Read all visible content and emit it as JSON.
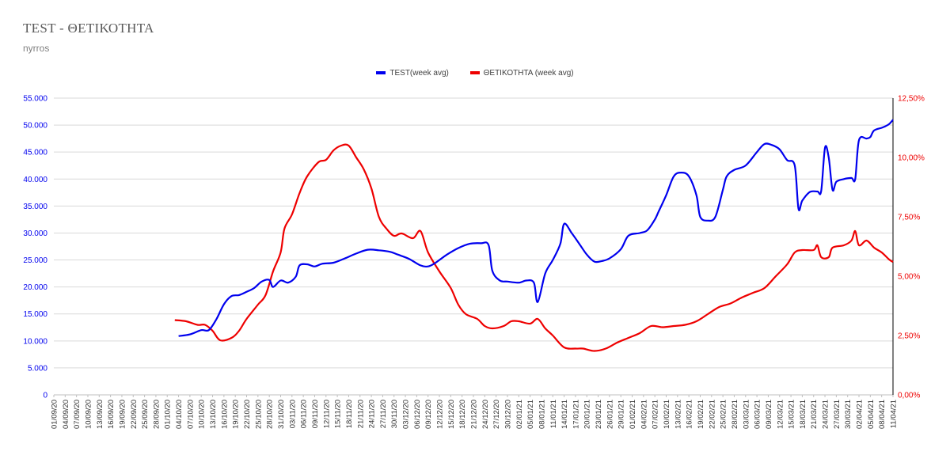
{
  "header": {
    "title": "TEST - ΘΕΤΙΚΟΤΗΤΑ",
    "subtitle": "nyrros"
  },
  "colors": {
    "test": "#0000ee",
    "positivity": "#ee0000",
    "grid": "#d9d9d9",
    "axis": "#000000"
  },
  "chart_data": {
    "type": "line",
    "title": "TEST - ΘΕΤΙΚΟΤΗΤΑ",
    "x_range": [
      "01/09/20",
      "11/04/21"
    ],
    "x_tick_labels": [
      "01/09/20",
      "04/09/20",
      "07/09/20",
      "10/09/20",
      "13/09/20",
      "16/09/20",
      "19/09/20",
      "22/09/20",
      "25/09/20",
      "28/09/20",
      "01/10/20",
      "04/10/20",
      "07/10/20",
      "10/10/20",
      "13/10/20",
      "16/10/20",
      "19/10/20",
      "22/10/20",
      "25/10/20",
      "28/10/20",
      "31/10/20",
      "03/11/20",
      "06/11/20",
      "09/11/20",
      "12/11/20",
      "15/11/20",
      "18/11/20",
      "21/11/20",
      "24/11/20",
      "27/11/20",
      "30/11/20",
      "03/12/20",
      "06/12/20",
      "09/12/20",
      "12/12/20",
      "15/12/20",
      "18/12/20",
      "21/12/20",
      "24/12/20",
      "27/12/20",
      "30/12/20",
      "02/01/21",
      "05/01/21",
      "08/01/21",
      "11/01/21",
      "14/01/21",
      "17/01/21",
      "20/01/21",
      "23/01/21",
      "26/01/21",
      "29/01/21",
      "01/02/21",
      "04/02/21",
      "07/02/21",
      "10/02/21",
      "13/02/21",
      "16/02/21",
      "19/02/21",
      "22/02/21",
      "25/02/21",
      "28/02/21",
      "03/03/21",
      "06/03/21",
      "09/03/21",
      "12/03/21",
      "15/03/21",
      "18/03/21",
      "21/03/21",
      "24/03/21",
      "27/03/21",
      "30/03/21",
      "02/04/21",
      "05/04/21",
      "08/04/21",
      "11/04/21"
    ],
    "y_left": {
      "min": 0,
      "max": 55000,
      "ticks": [
        "0",
        "5.000",
        "10.000",
        "15.000",
        "20.000",
        "25.000",
        "30.000",
        "35.000",
        "40.000",
        "45.000",
        "50.000",
        "55.000"
      ]
    },
    "y_right": {
      "min": 0,
      "max": 12.5,
      "ticks": [
        "0,00%",
        "2,50%",
        "5,00%",
        "7,50%",
        "10,00%",
        "12,50%"
      ]
    },
    "legend_position": "top-center",
    "grid": true,
    "series": [
      {
        "name": "TEST(week avg)",
        "axis": "left",
        "points": [
          [
            "04/10/20",
            10900
          ],
          [
            "07/10/20",
            11200
          ],
          [
            "10/10/20",
            12000
          ],
          [
            "12/10/20",
            12000
          ],
          [
            "14/10/20",
            14000
          ],
          [
            "16/10/20",
            16800
          ],
          [
            "18/10/20",
            18300
          ],
          [
            "20/10/20",
            18500
          ],
          [
            "22/10/20",
            19100
          ],
          [
            "24/10/20",
            19800
          ],
          [
            "26/10/20",
            21000
          ],
          [
            "28/10/20",
            21300
          ],
          [
            "29/10/20",
            20000
          ],
          [
            "31/10/20",
            21200
          ],
          [
            "02/11/20",
            20800
          ],
          [
            "04/11/20",
            21900
          ],
          [
            "05/11/20",
            24000
          ],
          [
            "07/11/20",
            24200
          ],
          [
            "09/11/20",
            23800
          ],
          [
            "11/11/20",
            24300
          ],
          [
            "14/11/20",
            24500
          ],
          [
            "17/11/20",
            25300
          ],
          [
            "20/11/20",
            26200
          ],
          [
            "23/11/20",
            26900
          ],
          [
            "26/11/20",
            26800
          ],
          [
            "29/11/20",
            26500
          ],
          [
            "01/12/20",
            26000
          ],
          [
            "04/12/20",
            25200
          ],
          [
            "07/12/20",
            24000
          ],
          [
            "09/12/20",
            23800
          ],
          [
            "11/12/20",
            24500
          ],
          [
            "14/12/20",
            26000
          ],
          [
            "17/12/20",
            27200
          ],
          [
            "20/12/20",
            28000
          ],
          [
            "23/12/20",
            28100
          ],
          [
            "25/12/20",
            27800
          ],
          [
            "26/12/20",
            23000
          ],
          [
            "28/12/20",
            21200
          ],
          [
            "30/12/20",
            21000
          ],
          [
            "02/01/21",
            20800
          ],
          [
            "04/01/21",
            21200
          ],
          [
            "06/01/21",
            20800
          ],
          [
            "07/01/21",
            17200
          ],
          [
            "09/01/21",
            22500
          ],
          [
            "11/01/21",
            25000
          ],
          [
            "13/01/21",
            28000
          ],
          [
            "14/01/21",
            31700
          ],
          [
            "16/01/21",
            30000
          ],
          [
            "18/01/21",
            28000
          ],
          [
            "20/01/21",
            26000
          ],
          [
            "22/01/21",
            24700
          ],
          [
            "24/01/21",
            24800
          ],
          [
            "26/01/21",
            25300
          ],
          [
            "29/01/21",
            27000
          ],
          [
            "31/01/21",
            29500
          ],
          [
            "03/02/21",
            30000
          ],
          [
            "05/02/21",
            30500
          ],
          [
            "07/02/21",
            32500
          ],
          [
            "08/02/21",
            34000
          ],
          [
            "10/02/21",
            37000
          ],
          [
            "12/02/21",
            40500
          ],
          [
            "14/02/21",
            41200
          ],
          [
            "16/02/21",
            40500
          ],
          [
            "18/02/21",
            37000
          ],
          [
            "19/02/21",
            33000
          ],
          [
            "21/02/21",
            32300
          ],
          [
            "23/02/21",
            33000
          ],
          [
            "25/02/21",
            38000
          ],
          [
            "26/02/21",
            40500
          ],
          [
            "28/02/21",
            41700
          ],
          [
            "03/03/21",
            42500
          ],
          [
            "06/03/21",
            45000
          ],
          [
            "08/03/21",
            46500
          ],
          [
            "10/03/21",
            46300
          ],
          [
            "12/03/21",
            45500
          ],
          [
            "14/03/21",
            43500
          ],
          [
            "16/03/21",
            42500
          ],
          [
            "17/03/21",
            34500
          ],
          [
            "18/03/21",
            36000
          ],
          [
            "20/03/21",
            37600
          ],
          [
            "22/03/21",
            37700
          ],
          [
            "23/03/21",
            37800
          ],
          [
            "24/03/21",
            45800
          ],
          [
            "25/03/21",
            44000
          ],
          [
            "26/03/21",
            38000
          ],
          [
            "27/03/21",
            39500
          ],
          [
            "29/03/21",
            40000
          ],
          [
            "31/03/21",
            40200
          ],
          [
            "01/04/21",
            40000
          ],
          [
            "02/04/21",
            47200
          ],
          [
            "04/04/21",
            47500
          ],
          [
            "05/04/21",
            47800
          ],
          [
            "06/04/21",
            49000
          ],
          [
            "08/04/21",
            49500
          ],
          [
            "09/04/21",
            49800
          ],
          [
            "10/04/21",
            50200
          ],
          [
            "11/04/21",
            51000
          ]
        ]
      },
      {
        "name": "ΘΕΤΙΚΟΤΗΤΑ (week avg)",
        "axis": "right",
        "points": [
          [
            "03/10/20",
            3.15
          ],
          [
            "06/10/20",
            3.1
          ],
          [
            "09/10/20",
            2.95
          ],
          [
            "11/10/20",
            2.95
          ],
          [
            "13/10/20",
            2.7
          ],
          [
            "15/10/20",
            2.3
          ],
          [
            "18/10/20",
            2.4
          ],
          [
            "20/10/20",
            2.7
          ],
          [
            "22/10/20",
            3.2
          ],
          [
            "25/10/20",
            3.8
          ],
          [
            "27/10/20",
            4.2
          ],
          [
            "29/10/20",
            5.2
          ],
          [
            "31/10/20",
            6.0
          ],
          [
            "01/11/20",
            7.0
          ],
          [
            "03/11/20",
            7.6
          ],
          [
            "05/11/20",
            8.5
          ],
          [
            "07/11/20",
            9.2
          ],
          [
            "10/11/20",
            9.8
          ],
          [
            "12/11/20",
            9.9
          ],
          [
            "14/11/20",
            10.3
          ],
          [
            "16/11/20",
            10.5
          ],
          [
            "18/11/20",
            10.5
          ],
          [
            "20/11/20",
            10.0
          ],
          [
            "22/11/20",
            9.5
          ],
          [
            "24/11/20",
            8.7
          ],
          [
            "26/11/20",
            7.5
          ],
          [
            "28/11/20",
            7.0
          ],
          [
            "30/11/20",
            6.7
          ],
          [
            "02/12/20",
            6.8
          ],
          [
            "05/12/20",
            6.6
          ],
          [
            "07/12/20",
            6.9
          ],
          [
            "09/12/20",
            6.0
          ],
          [
            "12/12/20",
            5.2
          ],
          [
            "15/12/20",
            4.5
          ],
          [
            "17/12/20",
            3.8
          ],
          [
            "19/12/20",
            3.4
          ],
          [
            "22/12/20",
            3.2
          ],
          [
            "24/12/20",
            2.9
          ],
          [
            "26/12/20",
            2.8
          ],
          [
            "29/12/20",
            2.9
          ],
          [
            "31/12/20",
            3.1
          ],
          [
            "02/01/21",
            3.1
          ],
          [
            "05/01/21",
            3.0
          ],
          [
            "07/01/21",
            3.2
          ],
          [
            "09/01/21",
            2.8
          ],
          [
            "11/01/21",
            2.5
          ],
          [
            "14/01/21",
            2.0
          ],
          [
            "17/01/21",
            1.95
          ],
          [
            "19/01/21",
            1.95
          ],
          [
            "22/01/21",
            1.85
          ],
          [
            "25/01/21",
            1.95
          ],
          [
            "28/01/21",
            2.2
          ],
          [
            "31/01/21",
            2.4
          ],
          [
            "03/02/21",
            2.6
          ],
          [
            "06/02/21",
            2.9
          ],
          [
            "09/02/21",
            2.85
          ],
          [
            "12/02/21",
            2.9
          ],
          [
            "15/02/21",
            2.95
          ],
          [
            "18/02/21",
            3.1
          ],
          [
            "21/02/21",
            3.4
          ],
          [
            "24/02/21",
            3.7
          ],
          [
            "27/02/21",
            3.85
          ],
          [
            "02/03/21",
            4.1
          ],
          [
            "05/03/21",
            4.3
          ],
          [
            "08/03/21",
            4.5
          ],
          [
            "11/03/21",
            5.0
          ],
          [
            "14/03/21",
            5.5
          ],
          [
            "16/03/21",
            6.0
          ],
          [
            "18/03/21",
            6.1
          ],
          [
            "21/03/21",
            6.1
          ],
          [
            "22/03/21",
            6.3
          ],
          [
            "23/03/21",
            5.8
          ],
          [
            "25/03/21",
            5.8
          ],
          [
            "26/03/21",
            6.2
          ],
          [
            "29/03/21",
            6.3
          ],
          [
            "31/03/21",
            6.5
          ],
          [
            "01/04/21",
            6.9
          ],
          [
            "02/04/21",
            6.3
          ],
          [
            "04/04/21",
            6.5
          ],
          [
            "06/04/21",
            6.2
          ],
          [
            "08/04/21",
            6.0
          ],
          [
            "10/04/21",
            5.7
          ],
          [
            "11/04/21",
            5.6
          ]
        ]
      }
    ]
  }
}
